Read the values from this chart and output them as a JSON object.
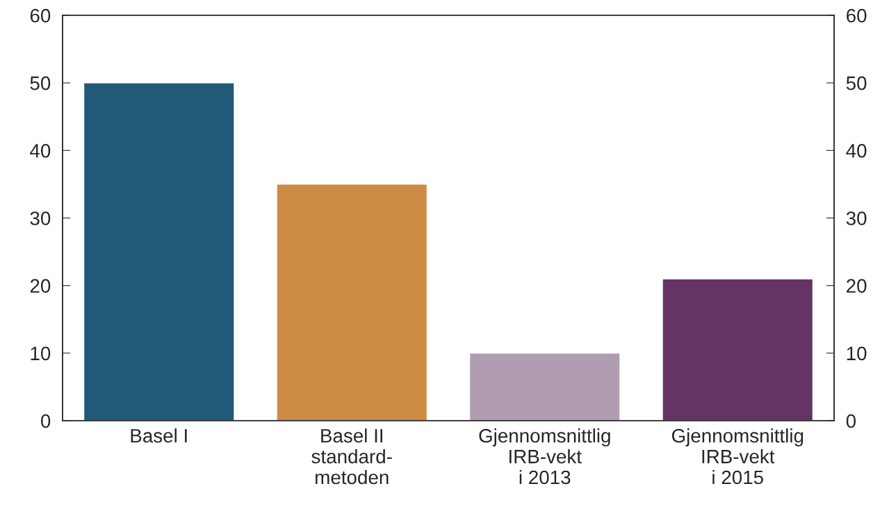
{
  "chart_data": {
    "type": "bar",
    "categories": [
      "Basel I",
      "Basel II\nstandard-\nmetoden",
      "Gjennomsnittlig\nIRB-vekt\ni 2013",
      "Gjennomsnittlig\nIRB-vekt\ni 2015"
    ],
    "values": [
      50,
      35,
      10,
      21
    ],
    "colors": [
      "#215a78",
      "#cd8c43",
      "#b09db2",
      "#653364"
    ],
    "ylim": [
      0,
      60
    ],
    "yticks": [
      0,
      10,
      20,
      30,
      40,
      50,
      60
    ],
    "y2lim": [
      0,
      60
    ],
    "y2ticks": [
      0,
      10,
      20,
      30,
      40,
      50,
      60
    ],
    "grid": false,
    "legend": false
  }
}
